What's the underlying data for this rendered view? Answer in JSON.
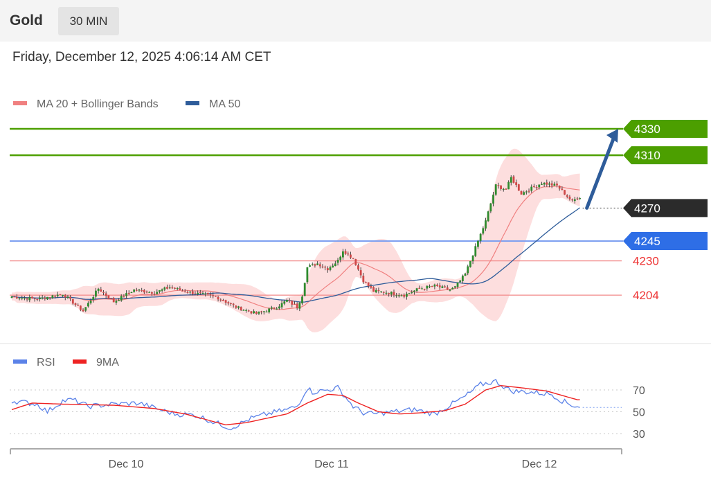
{
  "header": {
    "symbol": "Gold",
    "timeframe": "30 MIN",
    "datetime": "Friday, December 12, 2025 4:06:14 AM CET"
  },
  "chart_data": [
    {
      "type": "candlestick",
      "title": "Gold",
      "legend": [
        {
          "name": "MA 20 + Bollinger Bands",
          "color": "#f08080"
        },
        {
          "name": "MA 50",
          "color": "#2e5c9a"
        }
      ],
      "x_labels": [
        "Dec 10",
        "Dec 11",
        "Dec 12"
      ],
      "ylim": [
        4170,
        4350
      ],
      "levels": [
        {
          "value": 4330,
          "label": "4330",
          "color": "#4c9f00",
          "style": "resistance-badge"
        },
        {
          "value": 4310,
          "label": "4310",
          "color": "#4c9f00",
          "style": "resistance-badge"
        },
        {
          "value": 4270,
          "label": "4270",
          "color": "#2b2b2b",
          "style": "current-price-badge"
        },
        {
          "value": 4245,
          "label": "4245",
          "color": "#2e6ee6",
          "style": "support-badge"
        },
        {
          "value": 4230,
          "label": "4230",
          "color": "#ee3333",
          "style": "support-text"
        },
        {
          "value": 4204,
          "label": "4204",
          "color": "#ee3333",
          "style": "support-text"
        }
      ],
      "arrow": {
        "from": 4270,
        "to": 4330,
        "color": "#2e5c9a"
      },
      "anchors": [
        [
          0,
          4203
        ],
        [
          10,
          4201
        ],
        [
          20,
          4205
        ],
        [
          28,
          4192
        ],
        [
          34,
          4209
        ],
        [
          40,
          4199
        ],
        [
          48,
          4208
        ],
        [
          56,
          4206
        ],
        [
          62,
          4210
        ],
        [
          70,
          4206
        ],
        [
          80,
          4203
        ],
        [
          88,
          4195
        ],
        [
          96,
          4190
        ],
        [
          104,
          4195
        ],
        [
          108,
          4200
        ],
        [
          112,
          4195
        ],
        [
          114,
          4204
        ],
        [
          116,
          4225
        ],
        [
          120,
          4228
        ],
        [
          124,
          4224
        ],
        [
          128,
          4230
        ],
        [
          130,
          4238
        ],
        [
          134,
          4232
        ],
        [
          138,
          4215
        ],
        [
          142,
          4207
        ],
        [
          148,
          4206
        ],
        [
          154,
          4204
        ],
        [
          160,
          4209
        ],
        [
          166,
          4211
        ],
        [
          172,
          4208
        ],
        [
          174,
          4210
        ],
        [
          178,
          4220
        ],
        [
          182,
          4240
        ],
        [
          186,
          4260
        ],
        [
          190,
          4287
        ],
        [
          194,
          4284
        ],
        [
          196,
          4293
        ],
        [
          200,
          4281
        ],
        [
          204,
          4285
        ],
        [
          208,
          4289
        ],
        [
          214,
          4287
        ],
        [
          218,
          4279
        ],
        [
          220,
          4275
        ],
        [
          222,
          4278
        ]
      ]
    },
    {
      "type": "line",
      "title": "RSI",
      "legend": [
        {
          "name": "RSI",
          "color": "#5b82e8"
        },
        {
          "name": "9MA",
          "color": "#ee2222"
        }
      ],
      "ylim": [
        20,
        90
      ],
      "y_ticks": [
        70,
        50,
        30
      ],
      "x_labels": [
        "Dec 10",
        "Dec 11",
        "Dec 12"
      ],
      "rsi_anchors": [
        [
          0,
          60
        ],
        [
          10,
          57
        ],
        [
          14,
          50
        ],
        [
          20,
          60
        ],
        [
          24,
          61
        ],
        [
          30,
          55
        ],
        [
          40,
          57
        ],
        [
          50,
          58
        ],
        [
          58,
          52
        ],
        [
          64,
          48
        ],
        [
          72,
          47
        ],
        [
          80,
          40
        ],
        [
          86,
          35
        ],
        [
          94,
          44
        ],
        [
          102,
          49
        ],
        [
          108,
          52
        ],
        [
          112,
          55
        ],
        [
          116,
          72
        ],
        [
          118,
          68
        ],
        [
          124,
          70
        ],
        [
          128,
          72
        ],
        [
          134,
          55
        ],
        [
          138,
          49
        ],
        [
          142,
          48
        ],
        [
          150,
          50
        ],
        [
          158,
          52
        ],
        [
          166,
          48
        ],
        [
          172,
          56
        ],
        [
          178,
          64
        ],
        [
          184,
          75
        ],
        [
          190,
          78
        ],
        [
          196,
          69
        ],
        [
          204,
          68
        ],
        [
          212,
          66
        ],
        [
          216,
          60
        ],
        [
          220,
          56
        ],
        [
          222,
          55
        ]
      ],
      "ma_anchors": [
        [
          0,
          52
        ],
        [
          8,
          58
        ],
        [
          20,
          57
        ],
        [
          40,
          56
        ],
        [
          56,
          53
        ],
        [
          68,
          48
        ],
        [
          76,
          43
        ],
        [
          84,
          38
        ],
        [
          92,
          40
        ],
        [
          100,
          44
        ],
        [
          108,
          48
        ],
        [
          116,
          58
        ],
        [
          124,
          66
        ],
        [
          130,
          65
        ],
        [
          136,
          58
        ],
        [
          144,
          50
        ],
        [
          152,
          48
        ],
        [
          160,
          49
        ],
        [
          170,
          51
        ],
        [
          178,
          57
        ],
        [
          186,
          70
        ],
        [
          192,
          74
        ],
        [
          200,
          72
        ],
        [
          210,
          69
        ],
        [
          222,
          61
        ]
      ]
    }
  ]
}
